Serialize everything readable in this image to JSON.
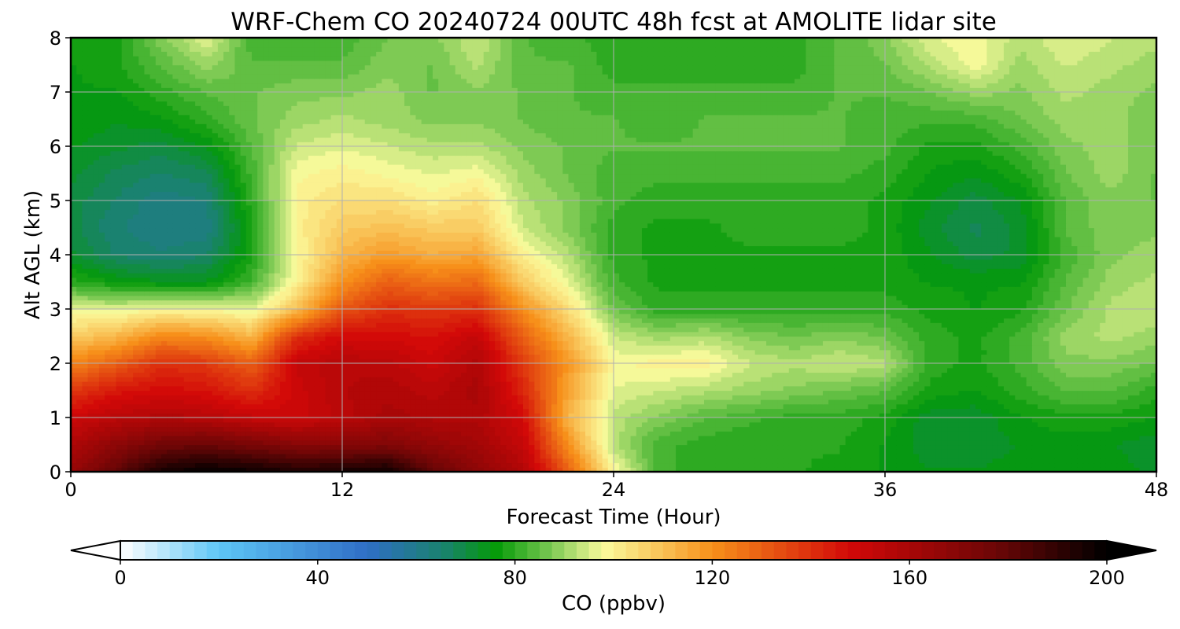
{
  "chart_data": {
    "type": "heatmap",
    "title": "WRF-Chem CO  20240724 00UTC 48h fcst at AMOLITE lidar site",
    "xlabel": "Forecast Time (Hour)",
    "ylabel": "Alt AGL (km)",
    "xlim": [
      0,
      48
    ],
    "ylim": [
      0,
      8
    ],
    "xticks": [
      0,
      12,
      24,
      36,
      48
    ],
    "yticks": [
      0,
      1,
      2,
      3,
      4,
      5,
      6,
      7,
      8
    ],
    "grid": true,
    "x": [
      0,
      2,
      4,
      6,
      8,
      10,
      12,
      14,
      16,
      18,
      20,
      22,
      24,
      26,
      28,
      30,
      32,
      34,
      36,
      38,
      40,
      42,
      44,
      46,
      48
    ],
    "y": [
      0,
      0.5,
      1,
      1.5,
      2,
      2.5,
      3,
      3.5,
      4,
      4.5,
      5,
      5.5,
      6,
      6.5,
      7,
      7.5,
      8
    ],
    "z": [
      [
        165,
        180,
        196,
        200,
        198,
        194,
        196,
        198,
        180,
        168,
        158,
        130,
        100,
        82,
        80,
        79,
        79,
        78,
        76,
        74,
        74,
        75,
        76,
        75,
        73
      ],
      [
        158,
        168,
        176,
        178,
        174,
        170,
        170,
        172,
        166,
        162,
        152,
        120,
        92,
        82,
        80,
        79,
        79,
        79,
        76,
        72,
        72,
        74,
        75,
        74,
        72
      ],
      [
        150,
        155,
        158,
        156,
        152,
        150,
        155,
        160,
        158,
        158,
        148,
        112,
        93,
        88,
        84,
        82,
        80,
        80,
        78,
        72,
        72,
        76,
        78,
        78,
        76
      ],
      [
        138,
        145,
        148,
        146,
        140,
        150,
        156,
        158,
        155,
        160,
        142,
        116,
        96,
        94,
        92,
        90,
        88,
        86,
        84,
        78,
        76,
        80,
        84,
        84,
        80
      ],
      [
        122,
        130,
        140,
        138,
        130,
        152,
        156,
        155,
        150,
        158,
        138,
        118,
        98,
        100,
        100,
        94,
        92,
        94,
        92,
        80,
        78,
        82,
        88,
        88,
        86
      ],
      [
        108,
        112,
        122,
        120,
        112,
        140,
        148,
        148,
        146,
        152,
        130,
        112,
        94,
        90,
        92,
        88,
        86,
        88,
        86,
        80,
        78,
        82,
        90,
        92,
        90
      ],
      [
        96,
        96,
        98,
        98,
        96,
        110,
        132,
        140,
        138,
        140,
        120,
        104,
        86,
        80,
        80,
        80,
        80,
        80,
        80,
        78,
        76,
        78,
        86,
        92,
        94
      ],
      [
        80,
        76,
        74,
        74,
        82,
        100,
        120,
        130,
        126,
        128,
        108,
        96,
        82,
        78,
        78,
        78,
        78,
        78,
        78,
        76,
        76,
        76,
        84,
        90,
        92
      ],
      [
        72,
        66,
        64,
        66,
        78,
        98,
        112,
        118,
        114,
        116,
        100,
        92,
        80,
        78,
        78,
        78,
        78,
        78,
        78,
        74,
        70,
        72,
        82,
        88,
        90
      ],
      [
        70,
        64,
        62,
        62,
        78,
        100,
        108,
        110,
        108,
        108,
        94,
        88,
        80,
        78,
        78,
        80,
        80,
        80,
        78,
        72,
        68,
        72,
        84,
        88,
        88
      ],
      [
        70,
        66,
        62,
        64,
        80,
        100,
        104,
        104,
        100,
        104,
        92,
        88,
        82,
        80,
        80,
        80,
        80,
        80,
        78,
        74,
        70,
        74,
        84,
        88,
        86
      ],
      [
        72,
        68,
        66,
        68,
        82,
        98,
        100,
        98,
        96,
        98,
        90,
        86,
        82,
        82,
        82,
        82,
        82,
        82,
        80,
        76,
        74,
        78,
        86,
        90,
        86
      ],
      [
        74,
        72,
        70,
        74,
        84,
        94,
        96,
        94,
        92,
        92,
        88,
        86,
        84,
        84,
        84,
        84,
        84,
        84,
        82,
        78,
        78,
        82,
        88,
        90,
        86
      ],
      [
        76,
        74,
        76,
        80,
        86,
        90,
        92,
        90,
        88,
        88,
        86,
        84,
        84,
        82,
        84,
        84,
        84,
        84,
        82,
        82,
        82,
        86,
        90,
        90,
        86
      ],
      [
        76,
        76,
        80,
        84,
        86,
        88,
        88,
        90,
        86,
        88,
        86,
        84,
        82,
        82,
        82,
        82,
        82,
        84,
        84,
        86,
        90,
        88,
        92,
        90,
        88
      ],
      [
        76,
        78,
        84,
        90,
        84,
        84,
        84,
        88,
        86,
        92,
        84,
        84,
        80,
        80,
        80,
        80,
        80,
        84,
        86,
        92,
        98,
        90,
        94,
        92,
        90
      ],
      [
        78,
        78,
        88,
        96,
        82,
        82,
        82,
        86,
        88,
        94,
        84,
        82,
        80,
        80,
        80,
        80,
        80,
        84,
        88,
        96,
        98,
        92,
        96,
        94,
        92
      ]
    ],
    "colorbar": {
      "label": "CO  (ppbv)",
      "min": 0,
      "max": 200,
      "ticks": [
        0,
        40,
        80,
        120,
        160,
        200
      ],
      "extend": "both",
      "colors": [
        {
          "v": 0,
          "c": "#ffffff"
        },
        {
          "v": 20,
          "c": "#5ec6f6"
        },
        {
          "v": 50,
          "c": "#2f6ec6"
        },
        {
          "v": 66,
          "c": "#19836a"
        },
        {
          "v": 76,
          "c": "#049a08"
        },
        {
          "v": 86,
          "c": "#6cc34a"
        },
        {
          "v": 98,
          "c": "#fbfb9c"
        },
        {
          "v": 120,
          "c": "#f7901a"
        },
        {
          "v": 148,
          "c": "#d20808"
        },
        {
          "v": 178,
          "c": "#6a0606"
        },
        {
          "v": 200,
          "c": "#000000"
        }
      ]
    }
  }
}
